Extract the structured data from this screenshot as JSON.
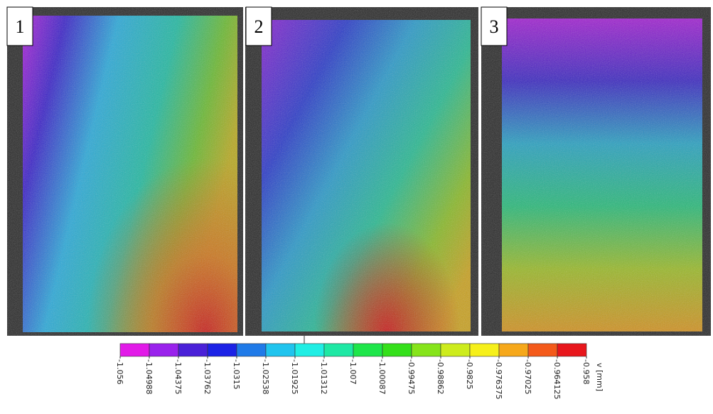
{
  "panels": [
    {
      "label": "1"
    },
    {
      "label": "2"
    },
    {
      "label": "3"
    }
  ],
  "colorbar": {
    "unit_label": "v [mm]",
    "ticks": [
      "-1.056",
      "-1.04988",
      "-1.04375",
      "-1.03762",
      "-1.0315",
      "-1.02538",
      "-1.01925",
      "-1.01312",
      "-1.007",
      "-1.00087",
      "-0.99475",
      "-0.98862",
      "-0.9825",
      "-0.976375",
      "-0.97025",
      "-0.964125",
      "-0.958"
    ],
    "colors": [
      "#e21ae8",
      "#9a22ec",
      "#4a20d8",
      "#1c22e6",
      "#1f7ae8",
      "#20c4ee",
      "#20eee4",
      "#1ee8a4",
      "#1ee64a",
      "#34e01a",
      "#86e41a",
      "#cdec1c",
      "#f6f01a",
      "#f6a81a",
      "#f45a1a",
      "#e8161c"
    ]
  }
}
